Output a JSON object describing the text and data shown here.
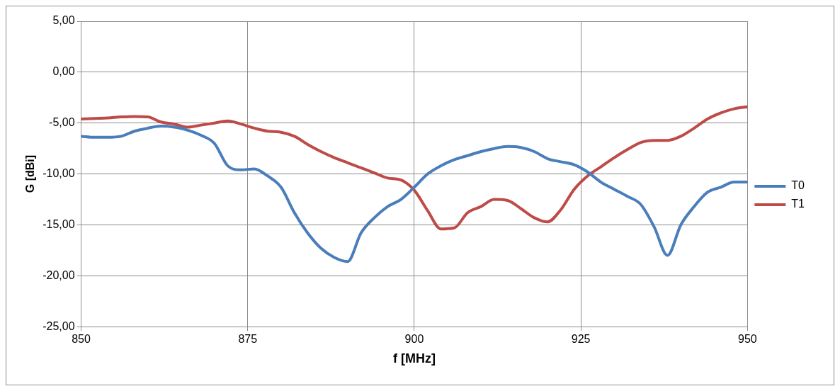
{
  "chart_data": {
    "type": "line",
    "xlabel": "f [MHz]",
    "ylabel": "G [dBi]",
    "x": [
      850,
      852,
      854,
      856,
      858,
      860,
      862,
      864,
      866,
      868,
      870,
      872,
      874,
      876,
      878,
      880,
      882,
      884,
      886,
      888,
      890,
      892,
      894,
      896,
      898,
      900,
      902,
      904,
      906,
      908,
      910,
      912,
      914,
      916,
      918,
      920,
      922,
      924,
      926,
      928,
      930,
      932,
      934,
      936,
      938,
      940,
      942,
      944,
      946,
      948,
      950
    ],
    "series": [
      {
        "name": "T0",
        "color": "#4a7ebb",
        "values": [
          -6.3,
          -6.4,
          -6.4,
          -6.3,
          -5.8,
          -5.5,
          -5.3,
          -5.4,
          -5.7,
          -6.2,
          -7.0,
          -9.2,
          -9.6,
          -9.5,
          -10.2,
          -11.3,
          -13.8,
          -15.8,
          -17.3,
          -18.2,
          -18.6,
          -15.8,
          -14.3,
          -13.2,
          -12.5,
          -11.3,
          -10.0,
          -9.2,
          -8.6,
          -8.2,
          -7.8,
          -7.5,
          -7.3,
          -7.4,
          -7.8,
          -8.5,
          -8.8,
          -9.1,
          -9.8,
          -10.8,
          -11.5,
          -12.2,
          -13.0,
          -15.2,
          -18.0,
          -15.0,
          -13.2,
          -11.8,
          -11.3,
          -10.8,
          -10.8
        ]
      },
      {
        "name": "T1",
        "color": "#be4b48",
        "values": [
          -4.6,
          -4.55,
          -4.5,
          -4.4,
          -4.35,
          -4.4,
          -4.9,
          -5.1,
          -5.4,
          -5.2,
          -5.0,
          -4.8,
          -5.1,
          -5.5,
          -5.8,
          -5.9,
          -6.3,
          -7.1,
          -7.8,
          -8.4,
          -8.9,
          -9.4,
          -9.9,
          -10.4,
          -10.6,
          -11.6,
          -13.6,
          -15.4,
          -15.3,
          -13.8,
          -13.2,
          -12.5,
          -12.6,
          -13.4,
          -14.3,
          -14.7,
          -13.5,
          -11.5,
          -10.2,
          -9.3,
          -8.4,
          -7.6,
          -6.9,
          -6.7,
          -6.7,
          -6.3,
          -5.5,
          -4.6,
          -4.0,
          -3.6,
          -3.4
        ]
      }
    ],
    "xlim": [
      850,
      950
    ],
    "xticks": [
      850,
      875,
      900,
      925,
      950
    ],
    "ylim": [
      -25,
      5
    ],
    "yticks": [
      {
        "value": 5,
        "label": "5,00"
      },
      {
        "value": 0,
        "label": "0,00"
      },
      {
        "value": -5,
        "label": "-5,00"
      },
      {
        "value": -10,
        "label": "-10,00"
      },
      {
        "value": -15,
        "label": "-15,00"
      },
      {
        "value": -20,
        "label": "-20,00"
      },
      {
        "value": -25,
        "label": "-25,00"
      }
    ],
    "grid": true,
    "legend": "right",
    "marker": "none",
    "line_style": "solid"
  }
}
